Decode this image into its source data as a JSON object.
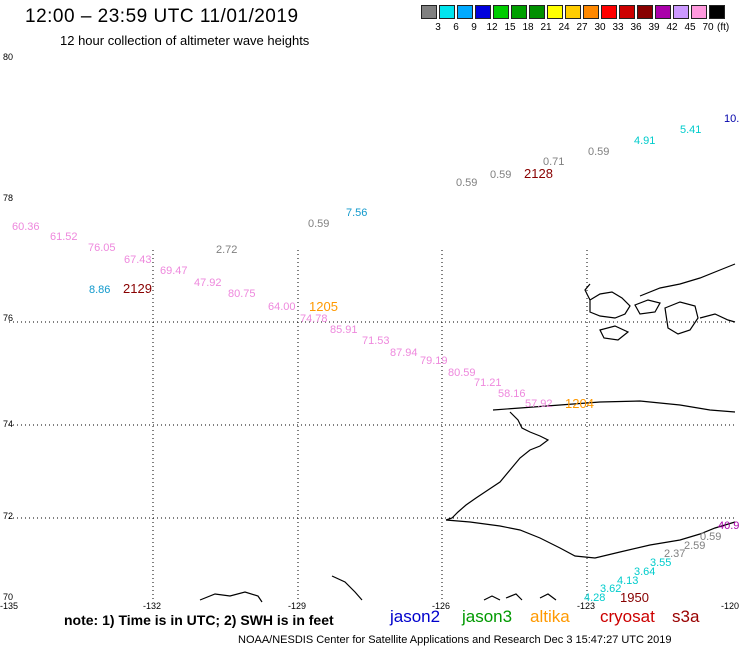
{
  "title": "12:00 – 23:59 UTC 11/01/2019",
  "subtitle": "12 hour collection of altimeter wave heights",
  "scale": {
    "unit": "(ft)",
    "labels": [
      "3",
      "6",
      "9",
      "12",
      "15",
      "18",
      "21",
      "24",
      "27",
      "30",
      "33",
      "36",
      "39",
      "42",
      "45",
      "70"
    ],
    "colors": [
      "#808080",
      "#00e5ee",
      "#00aaff",
      "#0000dd",
      "#00cc00",
      "#00a000",
      "#009000",
      "#ffff00",
      "#ffcc00",
      "#ff8800",
      "#ff0000",
      "#cc0000",
      "#880000",
      "#aa00aa",
      "#cc99ff",
      "#ff99dd",
      "#000000"
    ]
  },
  "axes": {
    "lat_labels": [
      "80",
      "78",
      "76",
      "74",
      "72",
      "70"
    ],
    "lon_labels": [
      "-135",
      "-132",
      "-129",
      "-126",
      "-123",
      "-120"
    ]
  },
  "points": [
    {
      "text": "60.36",
      "color": "#ee88dd"
    },
    {
      "text": "61.52",
      "color": "#ee88dd"
    },
    {
      "text": "76.05",
      "color": "#ee88dd"
    },
    {
      "text": "67.43",
      "color": "#ee88dd"
    },
    {
      "text": "69.47",
      "color": "#ee88dd"
    },
    {
      "text": "47.92",
      "color": "#ee88dd"
    },
    {
      "text": "80.75",
      "color": "#ee88dd"
    },
    {
      "text": "64.00",
      "color": "#ee88dd"
    },
    {
      "text": "74.78",
      "color": "#ee88dd"
    },
    {
      "text": "85.91",
      "color": "#ee88dd"
    },
    {
      "text": "71.53",
      "color": "#ee88dd"
    },
    {
      "text": "87.94",
      "color": "#ee88dd"
    },
    {
      "text": "79.19",
      "color": "#ee88dd"
    },
    {
      "text": "80.59",
      "color": "#ee88dd"
    },
    {
      "text": "71.21",
      "color": "#ee88dd"
    },
    {
      "text": "58.16",
      "color": "#ee88dd"
    },
    {
      "text": "57.92",
      "color": "#ee88dd"
    },
    {
      "text": "2.72",
      "color": "#808080"
    },
    {
      "text": "0.59",
      "color": "#808080"
    },
    {
      "text": "7.56",
      "color": "#1199cc"
    },
    {
      "text": "8.86",
      "color": "#1199cc"
    },
    {
      "text": "0.59",
      "color": "#808080"
    },
    {
      "text": "0.59",
      "color": "#808080"
    },
    {
      "text": "0.71",
      "color": "#808080"
    },
    {
      "text": "0.59",
      "color": "#808080"
    },
    {
      "text": "4.91",
      "color": "#00cccc"
    },
    {
      "text": "5.41",
      "color": "#00cccc"
    },
    {
      "text": "10.",
      "color": "#0000aa"
    },
    {
      "text": "40.9",
      "color": "#aa00aa"
    },
    {
      "text": "0.59",
      "color": "#808080"
    },
    {
      "text": "2.59",
      "color": "#808080"
    },
    {
      "text": "2.37",
      "color": "#808080"
    },
    {
      "text": "3.55",
      "color": "#00cccc"
    },
    {
      "text": "3.64",
      "color": "#00cccc"
    },
    {
      "text": "4.13",
      "color": "#00cccc"
    },
    {
      "text": "3.62",
      "color": "#00cccc"
    },
    {
      "text": "4.28",
      "color": "#00cccc"
    }
  ],
  "time_labels": [
    {
      "text": "2128",
      "color": "#880000"
    },
    {
      "text": "2129",
      "color": "#880000"
    },
    {
      "text": "1205",
      "color": "#ff9900"
    },
    {
      "text": "1204",
      "color": "#ff9900"
    },
    {
      "text": "1950",
      "color": "#880000"
    }
  ],
  "note": "note:  1) Time is in UTC;  2) SWH is in feet",
  "satellites": [
    {
      "name": "jason2",
      "color": "#0000cc"
    },
    {
      "name": "jason3",
      "color": "#009900"
    },
    {
      "name": "altika",
      "color": "#ff9900"
    },
    {
      "name": "cryosat",
      "color": "#cc0000"
    },
    {
      "name": "s3a",
      "color": "#990000"
    }
  ],
  "credit": "NOAA/NESDIS Center for Satellite Applications and Research     Dec  3 15:47:27 UTC 2019"
}
